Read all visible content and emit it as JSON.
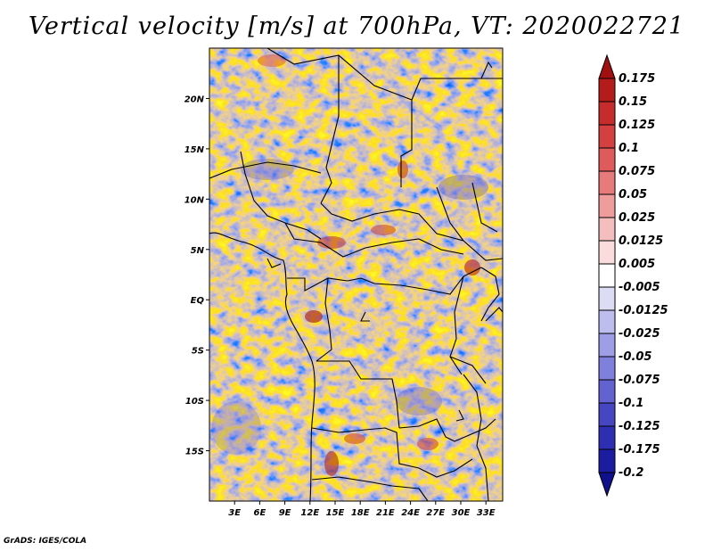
{
  "title": "Vertical velocity [m/s] at 700hPa, VT: 2020022721",
  "credit": "GrADS: IGES/COLA",
  "chart_data": {
    "type": "heatmap",
    "variable": "Vertical velocity",
    "units": "m/s",
    "level": "700hPa",
    "valid_time": "2020022721",
    "lon_range": [
      0,
      35
    ],
    "lat_range": [
      -20,
      25
    ],
    "x_ticks": [
      "3E",
      "6E",
      "9E",
      "12E",
      "15E",
      "18E",
      "21E",
      "24E",
      "27E",
      "30E",
      "33E"
    ],
    "y_ticks": [
      "20N",
      "15N",
      "10N",
      "5N",
      "EQ",
      "5S",
      "10S",
      "15S"
    ],
    "colorbar": {
      "labels": [
        "0.175",
        "0.15",
        "0.125",
        "0.1",
        "0.075",
        "0.05",
        "0.025",
        "0.0125",
        "0.005",
        "-0.005",
        "-0.0125",
        "-0.025",
        "-0.05",
        "-0.075",
        "-0.1",
        "-0.125",
        "-0.175",
        "-0.2"
      ],
      "colors": [
        "#a01010",
        "#b41c1c",
        "#c62c2c",
        "#d43f3f",
        "#df5a5a",
        "#e77a7a",
        "#ef9c9c",
        "#f5bebe",
        "#fadcdc",
        "#ffffff",
        "#dcdcf5",
        "#bebeee",
        "#9e9ee6",
        "#7f7fdc",
        "#6262d0",
        "#4646c2",
        "#2e2eb2",
        "#1c1ca0",
        "#10108a"
      ]
    }
  }
}
